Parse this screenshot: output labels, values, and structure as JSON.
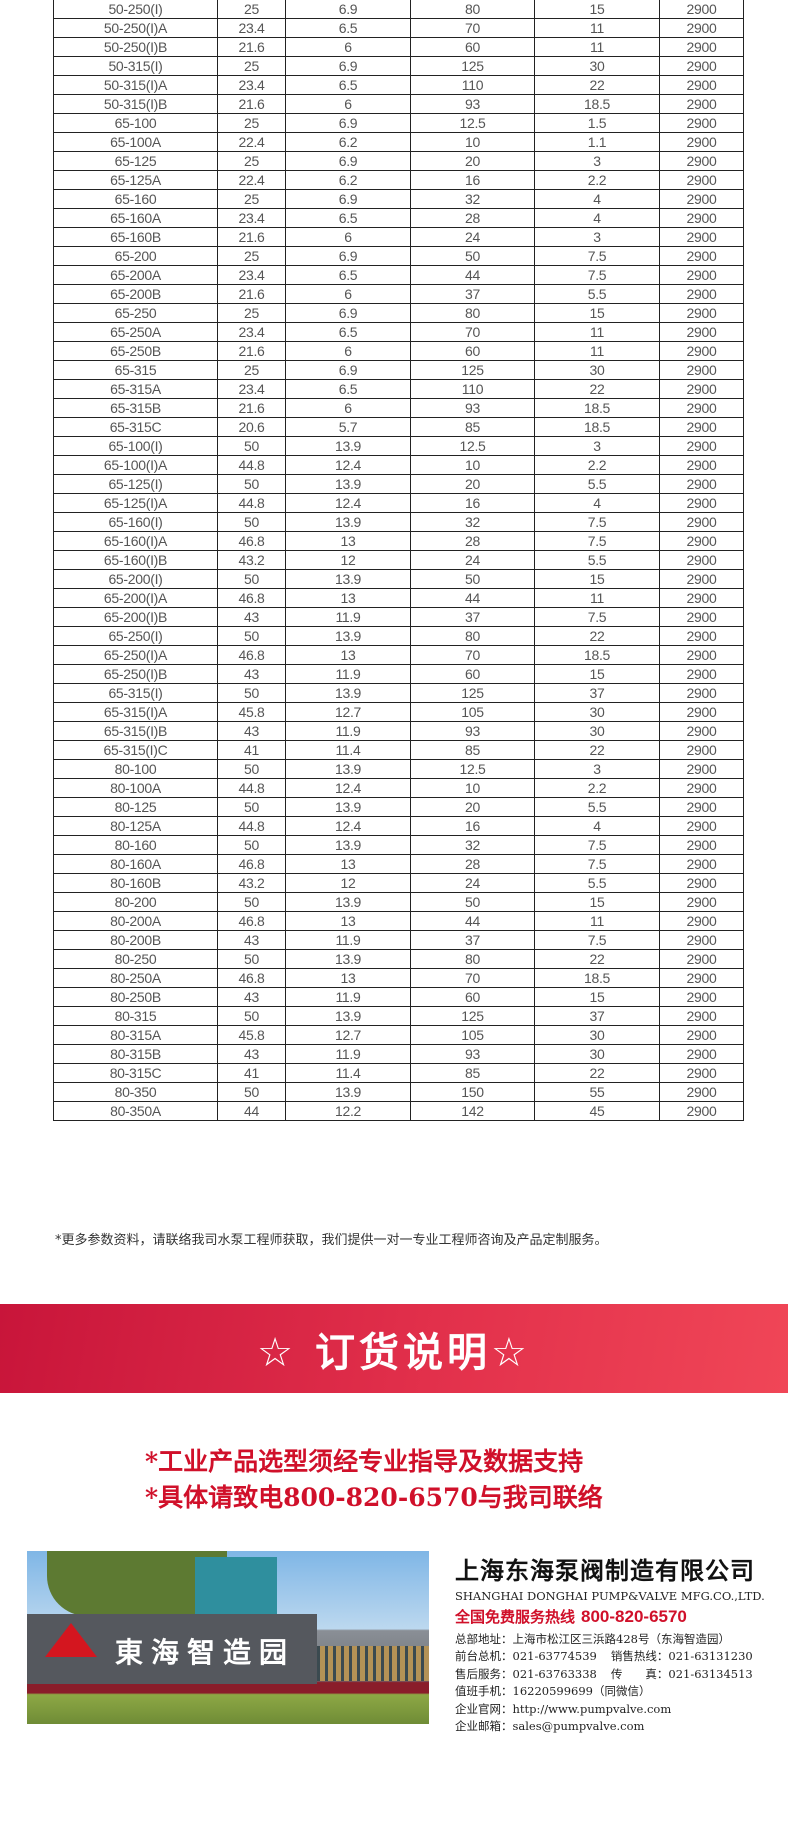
{
  "table": {
    "rows": [
      [
        "50-250(I)",
        "25",
        "6.9",
        "80",
        "15",
        "2900"
      ],
      [
        "50-250(I)A",
        "23.4",
        "6.5",
        "70",
        "11",
        "2900"
      ],
      [
        "50-250(I)B",
        "21.6",
        "6",
        "60",
        "11",
        "2900"
      ],
      [
        "50-315(I)",
        "25",
        "6.9",
        "125",
        "30",
        "2900"
      ],
      [
        "50-315(I)A",
        "23.4",
        "6.5",
        "110",
        "22",
        "2900"
      ],
      [
        "50-315(I)B",
        "21.6",
        "6",
        "93",
        "18.5",
        "2900"
      ],
      [
        "65-100",
        "25",
        "6.9",
        "12.5",
        "1.5",
        "2900"
      ],
      [
        "65-100A",
        "22.4",
        "6.2",
        "10",
        "1.1",
        "2900"
      ],
      [
        "65-125",
        "25",
        "6.9",
        "20",
        "3",
        "2900"
      ],
      [
        "65-125A",
        "22.4",
        "6.2",
        "16",
        "2.2",
        "2900"
      ],
      [
        "65-160",
        "25",
        "6.9",
        "32",
        "4",
        "2900"
      ],
      [
        "65-160A",
        "23.4",
        "6.5",
        "28",
        "4",
        "2900"
      ],
      [
        "65-160B",
        "21.6",
        "6",
        "24",
        "3",
        "2900"
      ],
      [
        "65-200",
        "25",
        "6.9",
        "50",
        "7.5",
        "2900"
      ],
      [
        "65-200A",
        "23.4",
        "6.5",
        "44",
        "7.5",
        "2900"
      ],
      [
        "65-200B",
        "21.6",
        "6",
        "37",
        "5.5",
        "2900"
      ],
      [
        "65-250",
        "25",
        "6.9",
        "80",
        "15",
        "2900"
      ],
      [
        "65-250A",
        "23.4",
        "6.5",
        "70",
        "11",
        "2900"
      ],
      [
        "65-250B",
        "21.6",
        "6",
        "60",
        "11",
        "2900"
      ],
      [
        "65-315",
        "25",
        "6.9",
        "125",
        "30",
        "2900"
      ],
      [
        "65-315A",
        "23.4",
        "6.5",
        "110",
        "22",
        "2900"
      ],
      [
        "65-315B",
        "21.6",
        "6",
        "93",
        "18.5",
        "2900"
      ],
      [
        "65-315C",
        "20.6",
        "5.7",
        "85",
        "18.5",
        "2900"
      ],
      [
        "65-100(I)",
        "50",
        "13.9",
        "12.5",
        "3",
        "2900"
      ],
      [
        "65-100(I)A",
        "44.8",
        "12.4",
        "10",
        "2.2",
        "2900"
      ],
      [
        "65-125(I)",
        "50",
        "13.9",
        "20",
        "5.5",
        "2900"
      ],
      [
        "65-125(I)A",
        "44.8",
        "12.4",
        "16",
        "4",
        "2900"
      ],
      [
        "65-160(I)",
        "50",
        "13.9",
        "32",
        "7.5",
        "2900"
      ],
      [
        "65-160(I)A",
        "46.8",
        "13",
        "28",
        "7.5",
        "2900"
      ],
      [
        "65-160(I)B",
        "43.2",
        "12",
        "24",
        "5.5",
        "2900"
      ],
      [
        "65-200(I)",
        "50",
        "13.9",
        "50",
        "15",
        "2900"
      ],
      [
        "65-200(I)A",
        "46.8",
        "13",
        "44",
        "11",
        "2900"
      ],
      [
        "65-200(I)B",
        "43",
        "11.9",
        "37",
        "7.5",
        "2900"
      ],
      [
        "65-250(I)",
        "50",
        "13.9",
        "80",
        "22",
        "2900"
      ],
      [
        "65-250(I)A",
        "46.8",
        "13",
        "70",
        "18.5",
        "2900"
      ],
      [
        "65-250(I)B",
        "43",
        "11.9",
        "60",
        "15",
        "2900"
      ],
      [
        "65-315(I)",
        "50",
        "13.9",
        "125",
        "37",
        "2900"
      ],
      [
        "65-315(I)A",
        "45.8",
        "12.7",
        "105",
        "30",
        "2900"
      ],
      [
        "65-315(I)B",
        "43",
        "11.9",
        "93",
        "30",
        "2900"
      ],
      [
        "65-315(I)C",
        "41",
        "11.4",
        "85",
        "22",
        "2900"
      ],
      [
        "80-100",
        "50",
        "13.9",
        "12.5",
        "3",
        "2900"
      ],
      [
        "80-100A",
        "44.8",
        "12.4",
        "10",
        "2.2",
        "2900"
      ],
      [
        "80-125",
        "50",
        "13.9",
        "20",
        "5.5",
        "2900"
      ],
      [
        "80-125A",
        "44.8",
        "12.4",
        "16",
        "4",
        "2900"
      ],
      [
        "80-160",
        "50",
        "13.9",
        "32",
        "7.5",
        "2900"
      ],
      [
        "80-160A",
        "46.8",
        "13",
        "28",
        "7.5",
        "2900"
      ],
      [
        "80-160B",
        "43.2",
        "12",
        "24",
        "5.5",
        "2900"
      ],
      [
        "80-200",
        "50",
        "13.9",
        "50",
        "15",
        "2900"
      ],
      [
        "80-200A",
        "46.8",
        "13",
        "44",
        "11",
        "2900"
      ],
      [
        "80-200B",
        "43",
        "11.9",
        "37",
        "7.5",
        "2900"
      ],
      [
        "80-250",
        "50",
        "13.9",
        "80",
        "22",
        "2900"
      ],
      [
        "80-250A",
        "46.8",
        "13",
        "70",
        "18.5",
        "2900"
      ],
      [
        "80-250B",
        "43",
        "11.9",
        "60",
        "15",
        "2900"
      ],
      [
        "80-315",
        "50",
        "13.9",
        "125",
        "37",
        "2900"
      ],
      [
        "80-315A",
        "45.8",
        "12.7",
        "105",
        "30",
        "2900"
      ],
      [
        "80-315B",
        "43",
        "11.9",
        "93",
        "30",
        "2900"
      ],
      [
        "80-315C",
        "41",
        "11.4",
        "85",
        "22",
        "2900"
      ],
      [
        "80-350",
        "50",
        "13.9",
        "150",
        "55",
        "2900"
      ],
      [
        "80-350A",
        "44",
        "12.2",
        "142",
        "45",
        "2900"
      ]
    ]
  },
  "note": "*更多参数资料，请联络我司水泵工程师获取，我们提供一对一专业工程师咨询及产品定制服务。",
  "banner": {
    "title": "☆ 订货说明☆",
    "color": "#d81e3c"
  },
  "ordering": {
    "line1": "*工业产品选型须经专业指导及数据支持",
    "line2": "*具体请致电800-820-6570与我司联络",
    "color": "#d0102a"
  },
  "photo": {
    "sign_text": "東海智造园"
  },
  "company": {
    "name_cn": "上海东海泵阀制造有限公司",
    "name_en": "SHANGHAI DONGHAI PUMP&VALVE MFG.CO.,LTD.",
    "hotline_label": "全国免费服务热线",
    "hotline": "800-820-6570",
    "address": "总部地址：上海市松江区三浜路428号（东海智造园）",
    "front_desk": "前台总机：021-63774539",
    "sales_hotline": "销售热线：021-63131230",
    "after_sales": "售后服务：021-63763338",
    "fax": "传　　真：021-63134513",
    "mobile": "值班手机：16220599699（同微信）",
    "website": "企业官网：http://www.pumpvalve.com",
    "email": "企业邮箱：sales@pumpvalve.com"
  }
}
